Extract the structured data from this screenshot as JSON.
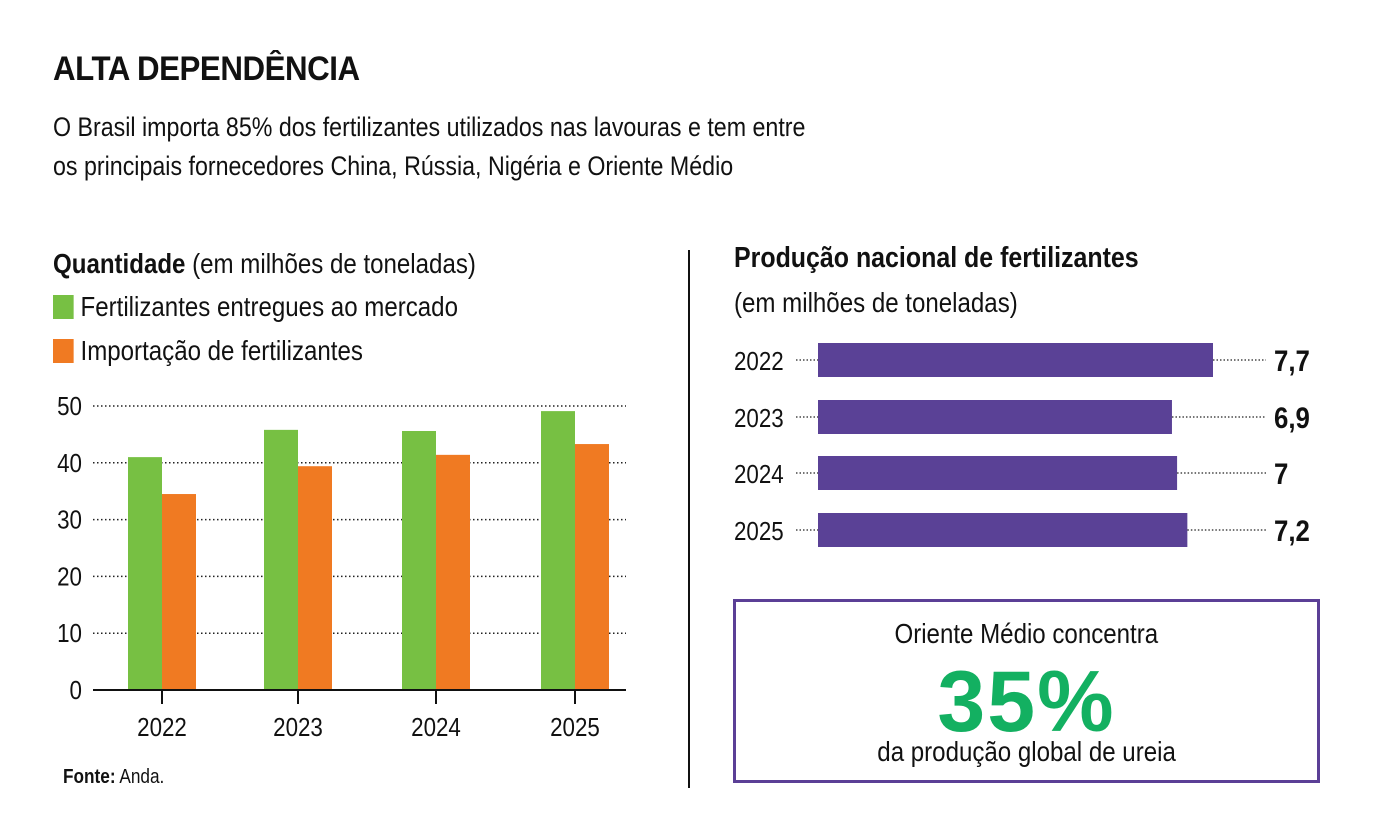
{
  "header": {
    "title": "ALTA DEPENDÊNCIA",
    "subtitle_line1": "O Brasil importa 85% dos fertilizantes utilizados nas lavouras e tem entre",
    "subtitle_line2": "os principais fornecedores China, Rússia, Nigéria e Oriente Médio"
  },
  "left_panel": {
    "title_bold": "Quantidade",
    "title_rest": " (em milhões de toneladas)",
    "source_label": "Fonte:",
    "source_value": " Anda."
  },
  "right_panel": {
    "title": "Produção nacional de fertilizantes",
    "subtitle": "(em milhões de toneladas)"
  },
  "callout": {
    "line1": "Oriente Médio concentra",
    "big_value": "35%",
    "line3": "da produção global de ureia",
    "border_color": "#5b3f96",
    "value_color": "#13b061"
  },
  "chart_data": [
    {
      "type": "bar",
      "title": "Quantidade (em milhões de toneladas)",
      "xlabel": "",
      "ylabel": "",
      "categories": [
        "2022",
        "2023",
        "2024",
        "2025"
      ],
      "series": [
        {
          "name": "Fertilizantes entregues ao mercado",
          "color": "#77c043",
          "values": [
            41.0,
            45.8,
            45.6,
            49.1
          ]
        },
        {
          "name": "Importação de fertilizantes",
          "color": "#f07a22",
          "values": [
            34.5,
            39.4,
            41.4,
            43.3
          ]
        }
      ],
      "ylim": [
        0,
        50
      ],
      "yticks": [
        0,
        10,
        20,
        30,
        40,
        50
      ],
      "ytick_labels": [
        "0",
        "10",
        "20",
        "30",
        "40",
        "50"
      ],
      "grid": true,
      "legend_position": "top-left"
    },
    {
      "type": "bar",
      "orientation": "horizontal",
      "title": "Produção nacional de fertilizantes",
      "subtitle": "(em milhões de toneladas)",
      "categories": [
        "2022",
        "2023",
        "2024",
        "2025"
      ],
      "values": [
        7.7,
        6.9,
        7.0,
        7.2
      ],
      "value_labels": [
        "7,7",
        "6,9",
        "7",
        "7,2"
      ],
      "color": "#5a4196",
      "xlim": [
        0,
        7.7
      ]
    }
  ]
}
